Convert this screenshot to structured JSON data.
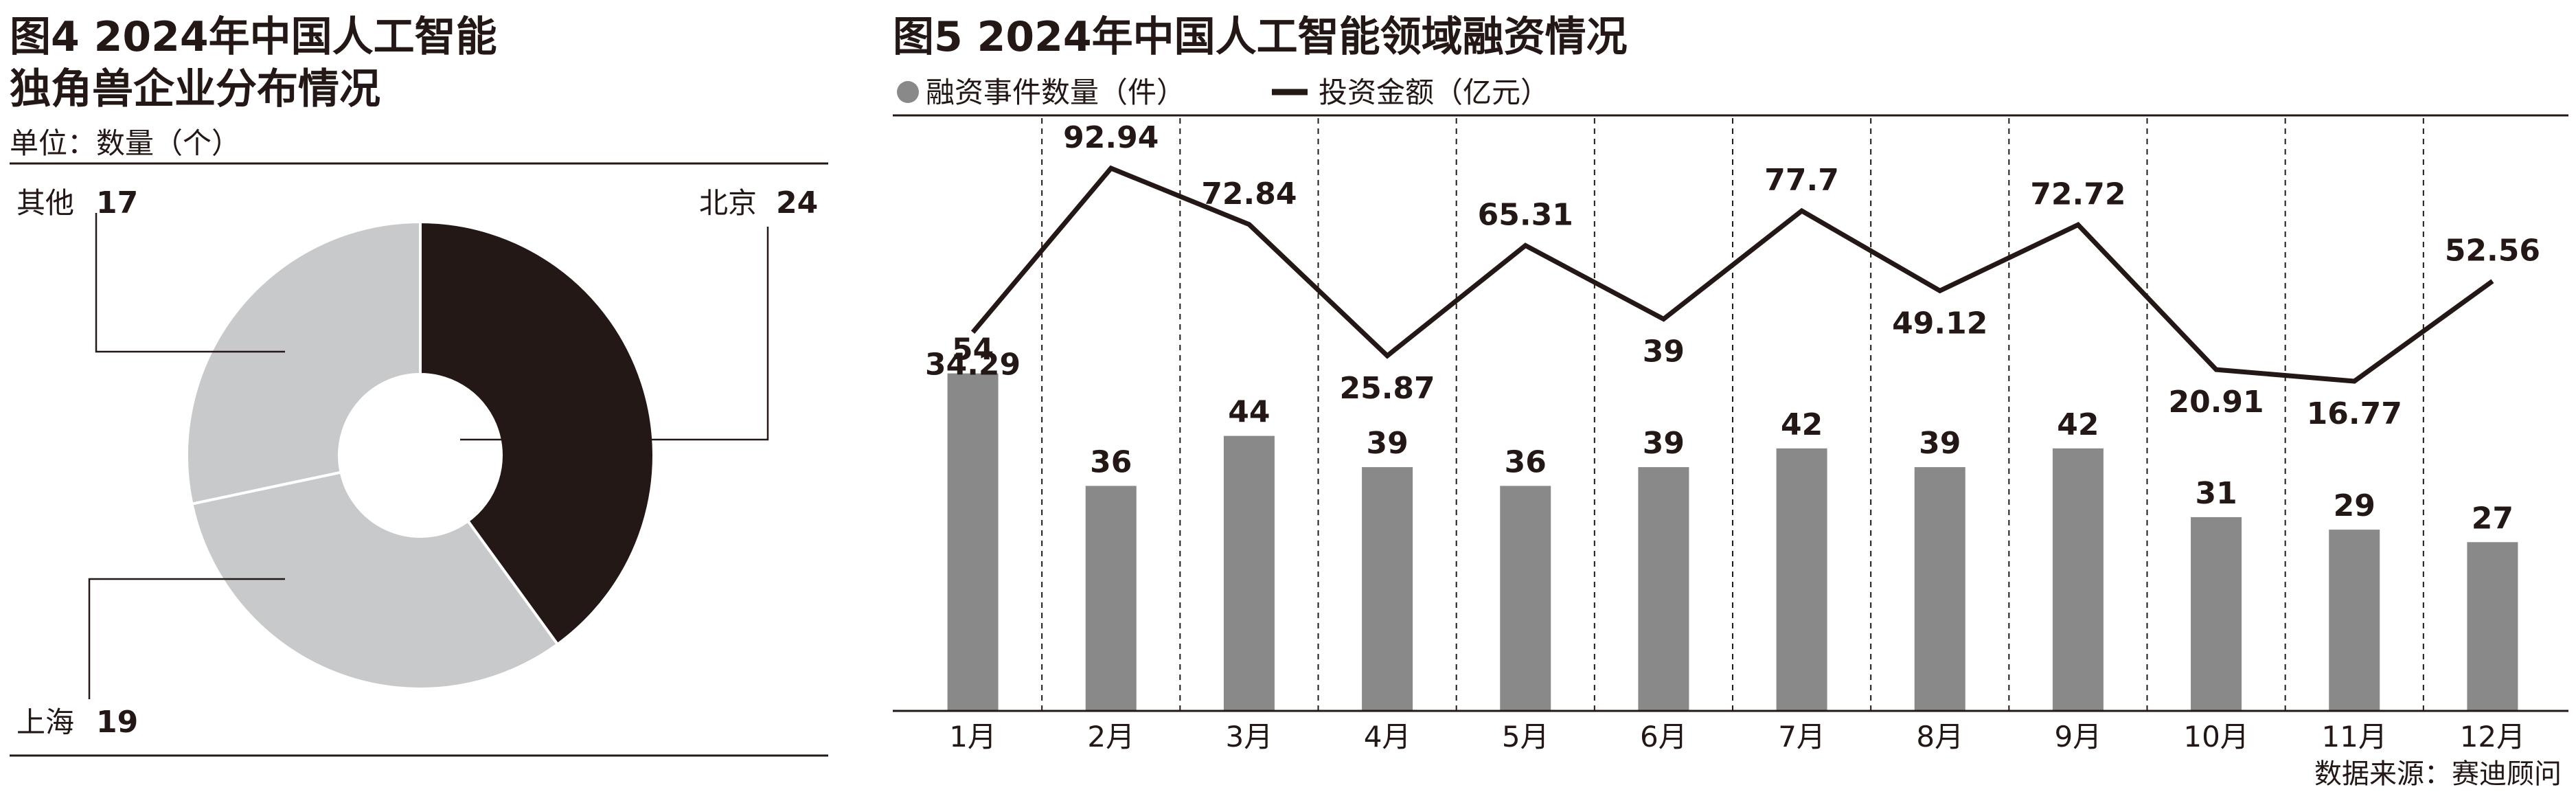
{
  "colors": {
    "dark": "#231815",
    "light_gray": "#c8c9ca",
    "bar_gray": "#898989",
    "line": "#231815"
  },
  "chart_data": [
    {
      "type": "pie",
      "title_line1": "图4 2024年中国人工智能",
      "title_line2": "独角兽企业分布情况",
      "unit": "单位：数量（个）",
      "slices": [
        {
          "label": "北京",
          "value": 24,
          "color": "#231815"
        },
        {
          "label": "上海",
          "value": 19,
          "color": "#c8c9ca"
        },
        {
          "label": "其他",
          "value": 17,
          "color": "#c8c9ca"
        }
      ]
    },
    {
      "type": "bar",
      "title": "图5 2024年中国人工智能领域融资情况",
      "categories": [
        "1月",
        "2月",
        "3月",
        "4月",
        "5月",
        "6月",
        "7月",
        "8月",
        "9月",
        "10月",
        "11月",
        "12月"
      ],
      "series": [
        {
          "name": "融资事件数量（件）",
          "type": "bar",
          "values": [
            54,
            36,
            44,
            39,
            36,
            39,
            42,
            39,
            42,
            31,
            29,
            27
          ]
        },
        {
          "name": "投资金额（亿元）",
          "type": "line",
          "values": [
            34.29,
            92.94,
            72.84,
            25.87,
            65.31,
            39,
            77.7,
            49.12,
            72.72,
            20.91,
            16.77,
            52.56
          ]
        }
      ],
      "grid": "vertical-dashed",
      "legend": "top-left",
      "source": "数据来源：赛迪顾问"
    }
  ]
}
